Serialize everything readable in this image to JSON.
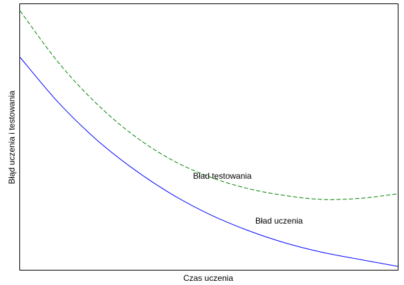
{
  "chart_data": {
    "type": "line",
    "title": "",
    "xlabel": "Czas uczenia",
    "ylabel": "Błąd uczenia i testowania",
    "xlim": [
      0,
      100
    ],
    "ylim": [
      0,
      100
    ],
    "grid": false,
    "x_ticks_shown": false,
    "y_ticks_shown": false,
    "x": [
      0,
      10,
      20,
      30,
      40,
      50,
      60,
      70,
      80,
      90,
      100
    ],
    "series": [
      {
        "name": "Bład uczenia",
        "color": "#0000ff",
        "style": "solid",
        "values": [
          80.0,
          63.2,
          49.3,
          38.0,
          28.6,
          21.0,
          15.0,
          10.2,
          6.6,
          3.9,
          1.3
        ]
      },
      {
        "name": "Bład testowania",
        "color": "#008000",
        "style": "dashed",
        "values": [
          97.5,
          78.3,
          62.9,
          50.7,
          41.5,
          35.1,
          30.7,
          28.0,
          26.5,
          26.9,
          28.6
        ]
      }
    ]
  }
}
